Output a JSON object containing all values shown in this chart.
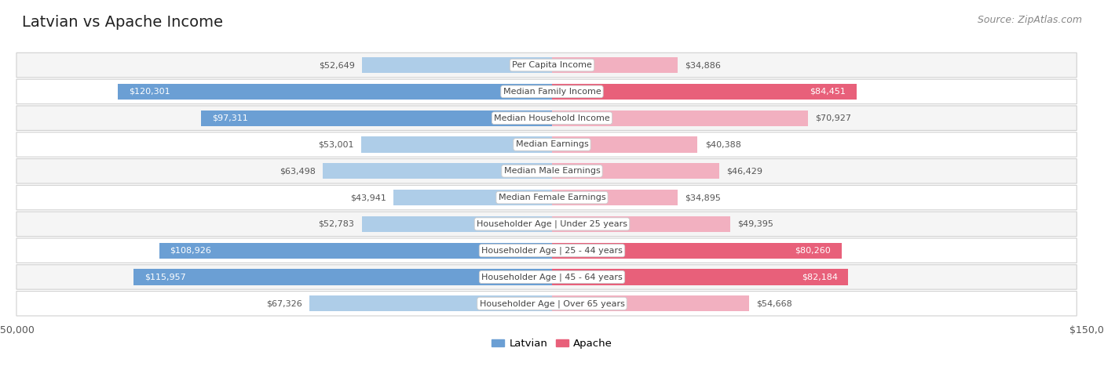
{
  "title": "Latvian vs Apache Income",
  "source": "Source: ZipAtlas.com",
  "max_val": 150000,
  "categories": [
    "Per Capita Income",
    "Median Family Income",
    "Median Household Income",
    "Median Earnings",
    "Median Male Earnings",
    "Median Female Earnings",
    "Householder Age | Under 25 years",
    "Householder Age | 25 - 44 years",
    "Householder Age | 45 - 64 years",
    "Householder Age | Over 65 years"
  ],
  "latvian_values": [
    52649,
    120301,
    97311,
    53001,
    63498,
    43941,
    52783,
    108926,
    115957,
    67326
  ],
  "apache_values": [
    34886,
    84451,
    70927,
    40388,
    46429,
    34895,
    49395,
    80260,
    82184,
    54668
  ],
  "latvian_color_strong": "#6b9fd4",
  "latvian_color_light": "#aecde8",
  "apache_color_strong": "#e8607a",
  "apache_color_light": "#f2b0c0",
  "bg_color": "#ffffff",
  "row_bg_even": "#f5f5f5",
  "row_bg_odd": "#ffffff",
  "label_threshold": 80000,
  "title_fontsize": 14,
  "source_fontsize": 9,
  "bar_label_fontsize": 8,
  "category_fontsize": 8,
  "axis_label_fontsize": 9
}
